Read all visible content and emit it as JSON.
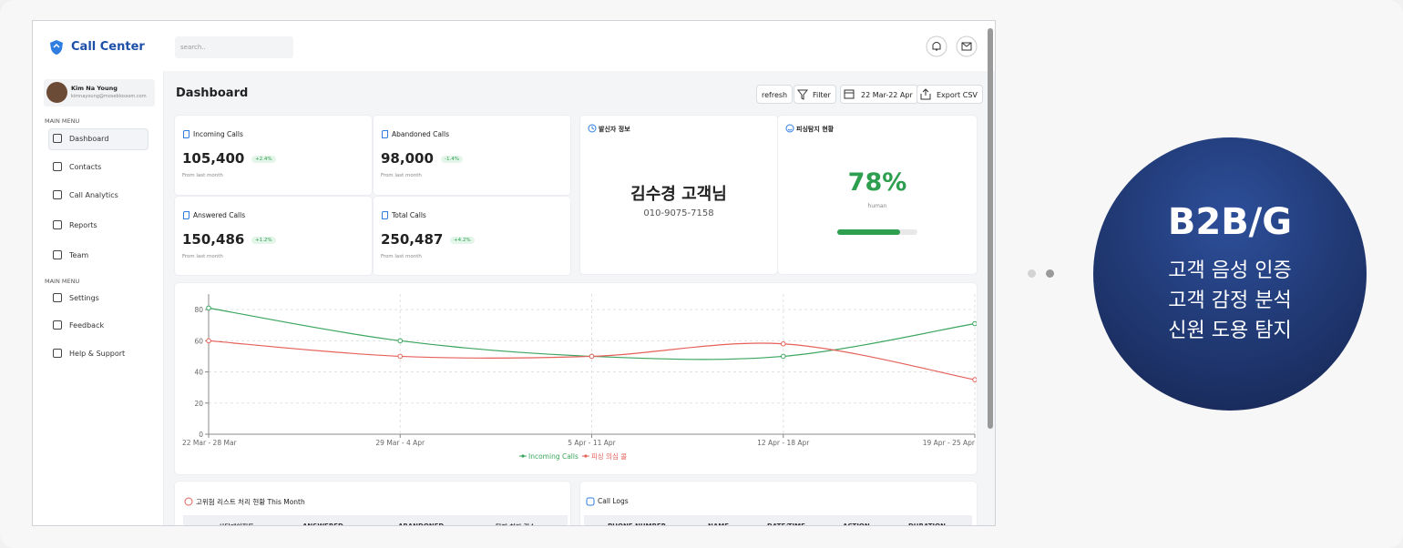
{
  "brand": {
    "title": "Call Center"
  },
  "search": {
    "placeholder": "search.."
  },
  "profile": {
    "name": "Kim Na Young",
    "email": "kimnayoung@moseblossom.com"
  },
  "menu": {
    "section1": "MAIN MENU",
    "items1": [
      "Dashboard",
      "Contacts",
      "Call Analytics",
      "Reports",
      "Team"
    ],
    "section2": "MAIN MENU",
    "items2": [
      "Settings",
      "Feedback",
      "Help & Support"
    ]
  },
  "page": {
    "title": "Dashboard"
  },
  "toolbar": {
    "refresh": "refresh",
    "filter": "Filter",
    "date": "22 Mar-22 Apr",
    "export": "Export CSV"
  },
  "stats": [
    {
      "label": "Incoming Calls",
      "value": "105,400",
      "change": "+2.4%",
      "note": "From last month"
    },
    {
      "label": "Abandoned Calls",
      "value": "98,000",
      "change": "-1.4%",
      "note": "From last month"
    },
    {
      "label": "Answered Calls",
      "value": "150,486",
      "change": "+1.2%",
      "note": "From last month"
    },
    {
      "label": "Total Calls",
      "value": "250,487",
      "change": "+4.2%",
      "note": "From last month"
    }
  ],
  "caller": {
    "title": "발신자 정보",
    "name": "김수경 고객님",
    "phone": "010-9075-7158"
  },
  "phishing": {
    "title": "피싱탐지 현황",
    "value": 78,
    "value_label": "78%",
    "caption": "human",
    "color": "#2e9e4f"
  },
  "chart_data": {
    "type": "line",
    "categories": [
      "22 Mar - 28 Mar",
      "29 Mar - 4 Apr",
      "5 Apr - 11 Apr",
      "12 Apr - 18 Apr",
      "19 Apr - 25 Apr"
    ],
    "series": [
      {
        "name": "Incoming Calls",
        "color": "#3aa55d",
        "values": [
          81,
          60,
          50,
          50,
          71
        ]
      },
      {
        "name": "피싱 의심 콜",
        "color": "#e5615a",
        "values": [
          60,
          50,
          50,
          58,
          35
        ]
      }
    ],
    "ylim": [
      0,
      90
    ],
    "yticks": [
      0,
      20,
      40,
      60,
      80
    ],
    "grid": true,
    "legend": "bottom"
  },
  "risk_table": {
    "title": "고위험 리스트 처리 현황 This Month",
    "columns": [
      "상담에이전트",
      "ANSWERED",
      "ABANDONED",
      "탐지 처리 건수"
    ]
  },
  "call_logs": {
    "title": "Call Logs",
    "columns": [
      "PHONE NUMBER",
      "NAME",
      "DATE/TIME",
      "ACTION",
      "DURATION"
    ]
  },
  "promo": {
    "title": "B2B/G",
    "lines": [
      "고객 음성 인증",
      "고객 감정 분석",
      "신원 도용 탐지"
    ]
  }
}
